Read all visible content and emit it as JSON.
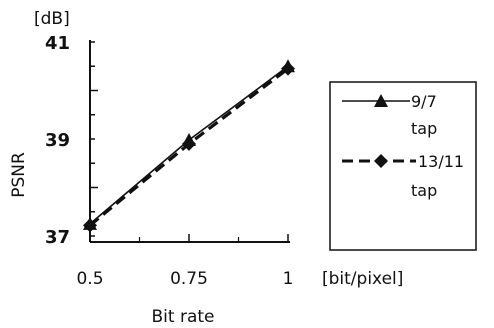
{
  "chart_data": {
    "type": "line",
    "x": [
      0.5,
      0.75,
      1
    ],
    "xlim": [
      0.5,
      1
    ],
    "ylim": [
      37,
      41
    ],
    "x_ticks": [
      "0.5",
      "0.75",
      "1"
    ],
    "y_ticks": [
      "37",
      "39",
      "41"
    ],
    "xlabel": "Bit rate",
    "x_unit": "[bit/pixel]",
    "ylabel": "PSNR",
    "y_unit": "[dB]",
    "grid": false,
    "legend_position": "right",
    "series": [
      {
        "name_line1": "9/7",
        "name_line2": "tap",
        "values": [
          37.25,
          38.98,
          40.5
        ],
        "marker": "triangle",
        "line_style": "solid",
        "color": "#111111"
      },
      {
        "name_line1": "13/11",
        "name_line2": "tap",
        "values": [
          37.22,
          38.9,
          40.45
        ],
        "marker": "diamond",
        "line_style": "dashed",
        "color": "#111111"
      }
    ]
  }
}
